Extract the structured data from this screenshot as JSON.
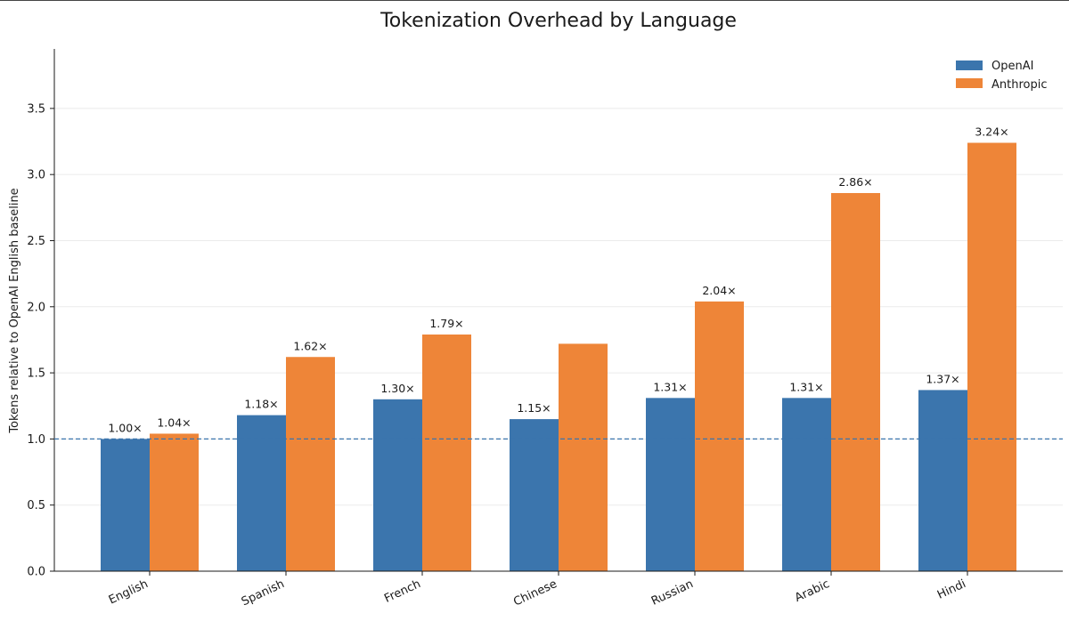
{
  "chart_data": {
    "type": "bar",
    "title": "Tokenization Overhead by Language",
    "xlabel": "",
    "ylabel": "Tokens relative to OpenAI English baseline",
    "categories": [
      "English",
      "Spanish",
      "French",
      "Chinese",
      "Russian",
      "Arabic",
      "Hindi"
    ],
    "series": [
      {
        "name": "OpenAI",
        "color": "#3b75ad",
        "values": [
          1.0,
          1.18,
          1.3,
          1.15,
          1.31,
          1.31,
          1.37
        ],
        "labels": [
          "1.00×",
          "1.18×",
          "1.30×",
          "1.15×",
          "1.31×",
          "1.31×",
          "1.37×"
        ]
      },
      {
        "name": "Anthropic",
        "color": "#ee8538",
        "values": [
          1.04,
          1.62,
          1.79,
          1.72,
          2.04,
          2.86,
          3.24
        ],
        "labels": [
          "1.04×",
          "1.62×",
          "1.79×",
          "",
          "2.04×",
          "2.86×",
          "3.24×"
        ]
      }
    ],
    "ylim": [
      0,
      3.95
    ],
    "yticks": [
      "0.0",
      "0.5",
      "1.0",
      "1.5",
      "2.0",
      "2.5",
      "3.0",
      "3.5"
    ],
    "baseline": 1.0,
    "baseline_color": "#3b75ad",
    "grid": "horizontal",
    "legend_position": "top-right"
  }
}
